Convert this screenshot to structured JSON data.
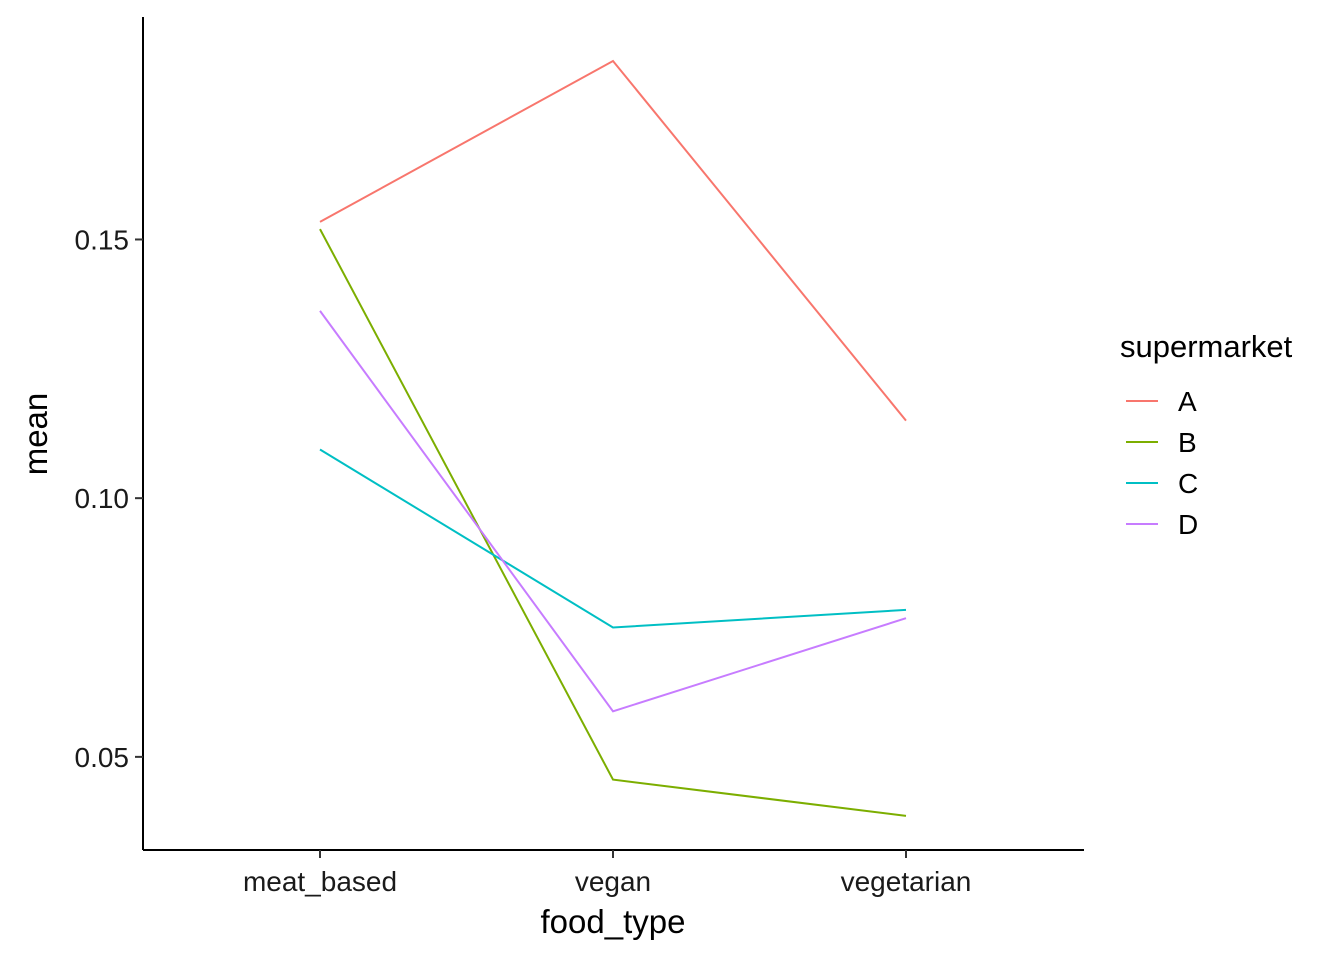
{
  "chart_data": {
    "type": "line",
    "title": "",
    "xlabel": "food_type",
    "ylabel": "mean",
    "categories": [
      "meat_based",
      "vegan",
      "vegetarian"
    ],
    "ylim": [
      0.032,
      0.193
    ],
    "yticks": [
      0.05,
      0.1,
      0.15
    ],
    "ytick_labels": [
      "0.05",
      "0.10",
      "0.15"
    ],
    "grid": false,
    "legend": {
      "title": "supermarket",
      "position": "right"
    },
    "series": [
      {
        "name": "A",
        "color": "#F8766D",
        "values": [
          0.1534,
          0.1845,
          0.115
        ]
      },
      {
        "name": "B",
        "color": "#7CAE00",
        "values": [
          0.152,
          0.0456,
          0.0386
        ]
      },
      {
        "name": "C",
        "color": "#00BFC4",
        "values": [
          0.1094,
          0.075,
          0.0784
        ]
      },
      {
        "name": "D",
        "color": "#C77CFF",
        "values": [
          0.1362,
          0.0588,
          0.0768
        ]
      }
    ]
  }
}
